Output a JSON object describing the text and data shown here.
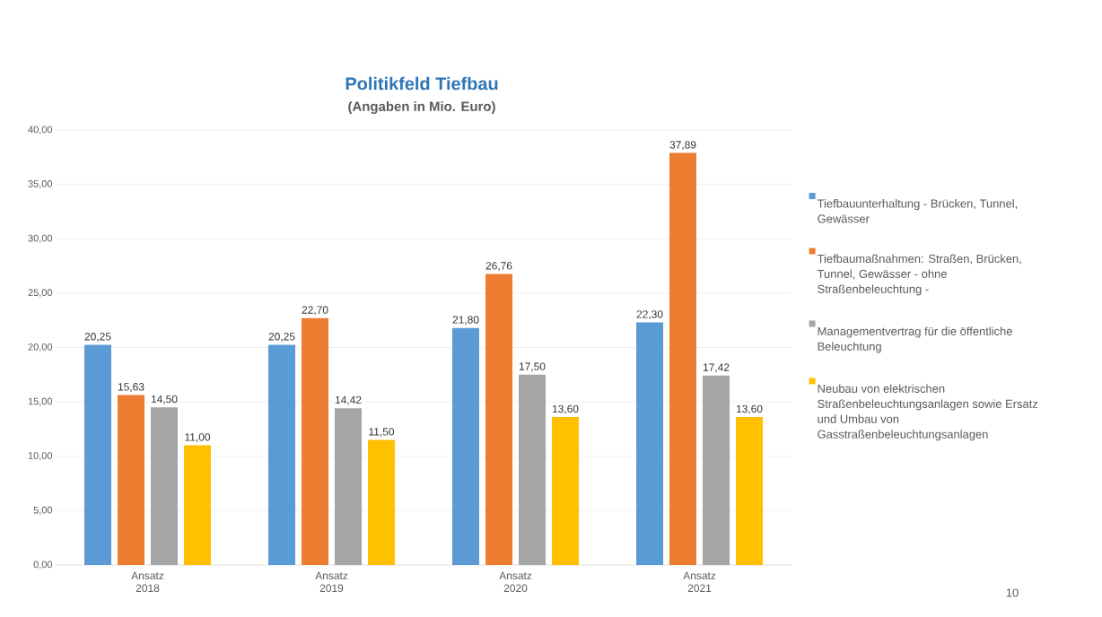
{
  "chart_data": {
    "type": "bar",
    "title": "Politikfeld Tiefbau",
    "subtitle": "(Angaben in Mio. Euro)",
    "categories": [
      "Ansatz 2018",
      "Ansatz 2019",
      "Ansatz 2020",
      "Ansatz 2021"
    ],
    "series": [
      {
        "name": "Tiefbauunterhaltung  - Brücken, Tunnel, Gewässer",
        "color": "#5b9bd5",
        "values": [
          20.25,
          20.25,
          21.8,
          22.3
        ],
        "value_labels": [
          "20,25",
          "20,25",
          "21,80",
          "22,30"
        ]
      },
      {
        "name": "Tiefbaumaßnahmen: Straßen, Brücken, Tunnel, Gewässer - ohne Straßenbeleuchtung -",
        "color": "#ed7d31",
        "values": [
          15.63,
          22.7,
          26.76,
          37.89
        ],
        "value_labels": [
          "15,63",
          "22,70",
          "26,76",
          "37,89"
        ]
      },
      {
        "name": "Managementvertrag für die öffentliche Beleuchtung",
        "color": "#a5a5a5",
        "values": [
          14.5,
          14.42,
          17.5,
          17.42
        ],
        "value_labels": [
          "14,50",
          "14,42",
          "17,50",
          "17,42"
        ]
      },
      {
        "name": "Neubau von elektrischen Straßenbeleuchtungsanlagen sowie Ersatz und Umbau von Gasstraßenbeleuchtungsanlagen",
        "color": "#ffc000",
        "values": [
          11.0,
          11.5,
          13.6,
          13.6
        ],
        "value_labels": [
          "11,00",
          "11,50",
          "13,60",
          "13,60"
        ]
      }
    ],
    "ylim": [
      0,
      40
    ],
    "yticks": [
      {
        "value": 0,
        "label": "0,00"
      },
      {
        "value": 5,
        "label": "5,00"
      },
      {
        "value": 10,
        "label": "10,00"
      },
      {
        "value": 15,
        "label": "15,00"
      },
      {
        "value": 20,
        "label": "20,00"
      },
      {
        "value": 25,
        "label": "25,00"
      },
      {
        "value": 30,
        "label": "30,00"
      },
      {
        "value": 35,
        "label": "35,00"
      },
      {
        "value": 40,
        "label": "40,00"
      }
    ],
    "grid": "y",
    "legend": "right",
    "annotations": [
      "10"
    ]
  }
}
